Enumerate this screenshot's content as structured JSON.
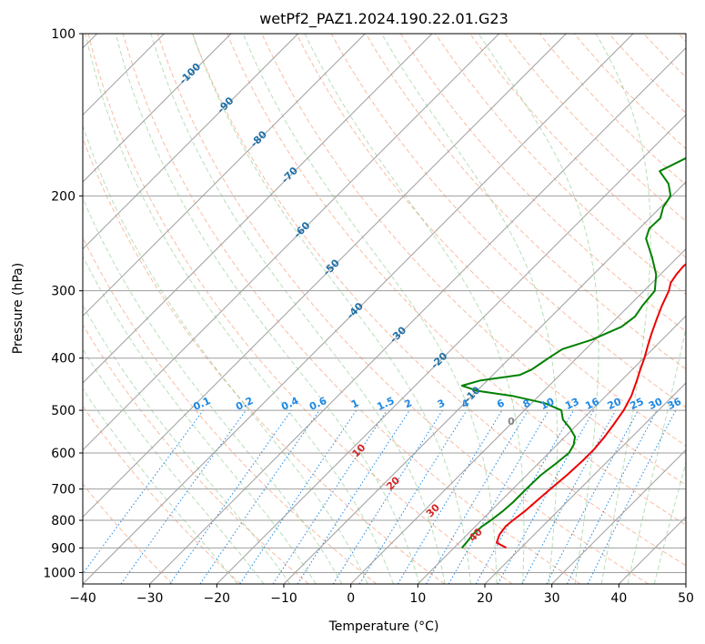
{
  "chart_data": {
    "type": "skew-t",
    "title": "wetPf2_PAZ1.2024.190.22.01.G23",
    "xlabel": "Temperature (°C)",
    "ylabel": "Pressure (hPa)",
    "xlim": [
      -40,
      50
    ],
    "ylim": [
      1050,
      100
    ],
    "y_scale": "log",
    "x_ticks": [
      "−40",
      "−30",
      "−20",
      "−10",
      "0",
      "10",
      "20",
      "30",
      "40",
      "50"
    ],
    "x_tick_values": [
      -40,
      -30,
      -20,
      -10,
      0,
      10,
      20,
      30,
      40,
      50
    ],
    "y_ticks": [
      "100",
      "200",
      "300",
      "400",
      "500",
      "600",
      "700",
      "800",
      "900",
      "1000"
    ],
    "y_tick_values": [
      100,
      200,
      300,
      400,
      500,
      600,
      700,
      800,
      900,
      1000
    ],
    "grid": true,
    "series": [
      {
        "color": "#ee0000",
        "points": [
          [
            900,
            17.8
          ],
          [
            880,
            15.6
          ],
          [
            850,
            14.8
          ],
          [
            820,
            14.5
          ],
          [
            800,
            14.7
          ],
          [
            770,
            15.1
          ],
          [
            740,
            15.3
          ],
          [
            700,
            15.6
          ],
          [
            660,
            16.0
          ],
          [
            620,
            16.2
          ],
          [
            590,
            16.2
          ],
          [
            560,
            15.9
          ],
          [
            530,
            15.4
          ],
          [
            500,
            14.8
          ],
          [
            470,
            13.8
          ],
          [
            440,
            12.3
          ],
          [
            420,
            11.2
          ],
          [
            400,
            10.1
          ],
          [
            380,
            8.8
          ],
          [
            360,
            7.5
          ],
          [
            340,
            6.2
          ],
          [
            320,
            4.9
          ],
          [
            300,
            3.7
          ],
          [
            290,
            2.8
          ],
          [
            280,
            2.4
          ],
          [
            270,
            2.2
          ],
          [
            260,
            2.6
          ],
          [
            250,
            4.2
          ],
          [
            240,
            5.2
          ],
          [
            230,
            5.6
          ],
          [
            220,
            6.0
          ],
          [
            210,
            6.9
          ],
          [
            200,
            9.0
          ],
          [
            190,
            13.0
          ],
          [
            180,
            14.8
          ],
          [
            170,
            15.8
          ],
          [
            160,
            17.3
          ],
          [
            150,
            19.5
          ],
          [
            140,
            22.0
          ],
          [
            130,
            23.8
          ],
          [
            120,
            25.3
          ],
          [
            110,
            27.4
          ],
          [
            100,
            29.4
          ]
        ]
      },
      {
        "color": "#008000",
        "points": [
          [
            900,
            11.2
          ],
          [
            870,
            11.0
          ],
          [
            850,
            10.8
          ],
          [
            820,
            11.0
          ],
          [
            800,
            11.4
          ],
          [
            770,
            11.8
          ],
          [
            740,
            12.0
          ],
          [
            700,
            12.0
          ],
          [
            660,
            12.1
          ],
          [
            630,
            12.6
          ],
          [
            600,
            13.0
          ],
          [
            580,
            12.5
          ],
          [
            560,
            11.5
          ],
          [
            540,
            9.5
          ],
          [
            520,
            7.1
          ],
          [
            500,
            5.5
          ],
          [
            485,
            2.0
          ],
          [
            470,
            -4.0
          ],
          [
            460,
            -10.0
          ],
          [
            450,
            -13.0
          ],
          [
            440,
            -11.0
          ],
          [
            430,
            -6.0
          ],
          [
            420,
            -5.0
          ],
          [
            410,
            -4.6
          ],
          [
            400,
            -4.2
          ],
          [
            385,
            -3.5
          ],
          [
            370,
            -0.5
          ],
          [
            350,
            2.0
          ],
          [
            335,
            2.5
          ],
          [
            320,
            2.0
          ],
          [
            300,
            1.6
          ],
          [
            280,
            -0.6
          ],
          [
            260,
            -3.8
          ],
          [
            240,
            -7.5
          ],
          [
            230,
            -8.5
          ],
          [
            220,
            -8.4
          ],
          [
            210,
            -9.6
          ],
          [
            200,
            -10.2
          ],
          [
            190,
            -12.3
          ],
          [
            180,
            -15.5
          ],
          [
            170,
            -13.5
          ],
          [
            160,
            -10.4
          ],
          [
            150,
            -11.4
          ],
          [
            140,
            -15.5
          ],
          [
            130,
            -15.6
          ],
          [
            120,
            -13.6
          ],
          [
            110,
            -12.6
          ],
          [
            100,
            -10.5
          ]
        ]
      }
    ],
    "background_lines": [
      "isotherms",
      "isobars",
      "dry adiabats",
      "moist adiabats",
      "mixing ratio lines"
    ],
    "isotherm_labels": [
      "-100",
      "-90",
      "-80",
      "-70",
      "-60",
      "-50",
      "-40",
      "-30",
      "-20",
      "-10"
    ],
    "mixing_ratio_labels": [
      "0.1",
      "0.2",
      "0.4",
      "0.6",
      "1",
      "1.5",
      "2",
      "3",
      "4",
      "6",
      "8",
      "10",
      "13",
      "16",
      "20",
      "25",
      "30",
      "36"
    ],
    "red_labels": [
      "10",
      "20",
      "30",
      "40"
    ],
    "gray_label": "0"
  }
}
